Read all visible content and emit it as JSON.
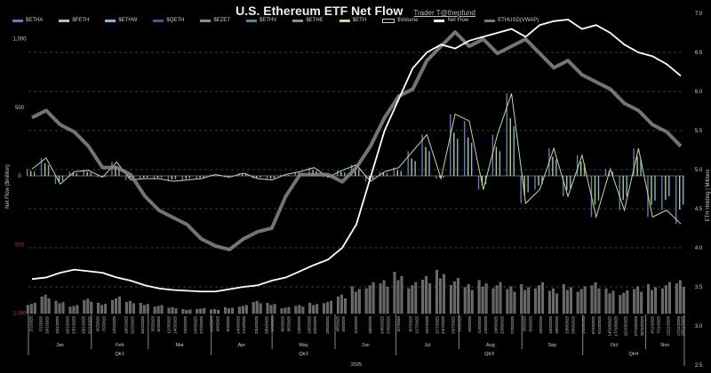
{
  "chart_data": {
    "type": "bar+line",
    "title": "U.S. Ethereum ETF Net Flow",
    "credit": "Trader T@thepfund",
    "legend": [
      {
        "name": "$ETHA",
        "color": "#5b7fc0"
      },
      {
        "name": "$FETH",
        "color": "#b5cf7a"
      },
      {
        "name": "$ETHW",
        "color": "#79b8d8"
      },
      {
        "name": "$QETH",
        "color": "#3f5a95"
      },
      {
        "name": "$EZET",
        "color": "#8a9a55"
      },
      {
        "name": "$ETHV",
        "color": "#4a8aa0"
      },
      {
        "name": "$ETHE",
        "color": "#8c8c8c"
      },
      {
        "name": "$ETH",
        "color": "#c8dd8c"
      },
      {
        "name": "$Volume",
        "color": "#000000"
      },
      {
        "name": "Net Flow",
        "color": "#ffffff"
      },
      {
        "name": "ETHUSD(VWAP)",
        "color": "#777777"
      }
    ],
    "legend_position": "top",
    "ylabel_left": "Net Flow ($million)",
    "ylabel_right": "ETH Holding | Millions",
    "left_ticks": [
      {
        "v": 1000,
        "label": "1,000",
        "color": "#cccccc"
      },
      {
        "v": 500,
        "label": "500",
        "color": "#cccccc"
      },
      {
        "v": 0,
        "label": "0",
        "color": "#cccccc"
      },
      {
        "v": -500,
        "label": "500",
        "color": "#c0392b"
      },
      {
        "v": -1000,
        "label": "1,000",
        "color": "#c0392b"
      }
    ],
    "ylim_left": [
      -1000,
      1000
    ],
    "right_ticks": [
      "7.0",
      "6.5",
      "6.0",
      "5.5",
      "5.0",
      "4.5",
      "4.0",
      "3.5",
      "3.0",
      "2.5"
    ],
    "ylim_right": [
      2.5,
      7.0
    ],
    "grid": "dashed horizontal",
    "year_label": "2025",
    "quarters": [
      "Qtr1",
      "Qtr2",
      "Qtr3",
      "Qtr4"
    ],
    "months": [
      "Jan",
      "Feb",
      "Mar",
      "Apr",
      "May",
      "Jun",
      "Jul",
      "Aug",
      "Sep",
      "Oct",
      "Nov"
    ],
    "date_labels": [
      "2/1/2025",
      "7/1/2025",
      "10/1/2025",
      "15/1/2025",
      "20/1/2025",
      "23/1/2025",
      "28/1/2025",
      "31/1/2025",
      "4/2/2025",
      "7/2/2025",
      "12/2/2025",
      "18/2/2025",
      "21/2/2025",
      "26/2/2025",
      "3/3/2025",
      "6/3/2025",
      "11/3/2025",
      "14/3/2025",
      "19/3/2025",
      "24/3/2025",
      "27/3/2025",
      "1/4/2025",
      "4/4/2025",
      "9/4/2025",
      "14/4/2025",
      "17/4/2025",
      "23/4/2025",
      "28/4/2025",
      "1/5/2025",
      "6/5/2025",
      "9/5/2025",
      "14/5/2025",
      "19/5/2025",
      "22/5/2025",
      "28/5/2025",
      "2/6/2025",
      "5/6/2025",
      "11/6/2025",
      "18/6/2025",
      "24/6/2025",
      "27/6/2025",
      "2/7/2025",
      "8/7/2025",
      "11/7/2025",
      "16/7/2025",
      "21/7/2025",
      "24/7/2025",
      "29/7/2025",
      "1/8/2025",
      "6/8/2025",
      "11/8/2025",
      "14/8/2025",
      "19/8/2025",
      "22/8/2025",
      "27/8/2025",
      "2/9/2025",
      "5/9/2025",
      "10/9/2025",
      "15/9/2025",
      "18/9/2025",
      "23/9/2025",
      "26/9/2025",
      "1/10/2025",
      "6/10/2025",
      "9/10/2025",
      "14/10/2025",
      "17/10/2025",
      "22/10/2025",
      "27/10/2025",
      "30/10/2025",
      "4/11/2025",
      "7/11/2025",
      "12/11/2025",
      "17/11/2025",
      "19/11/2025"
    ],
    "week_net_flow": [
      50,
      130,
      -60,
      30,
      40,
      -10,
      100,
      -30,
      -20,
      -20,
      -40,
      -30,
      -20,
      10,
      -10,
      20,
      -20,
      -30,
      10,
      30,
      60,
      -10,
      40,
      80,
      -40,
      30,
      60,
      180,
      300,
      -20,
      450,
      400,
      -100,
      300,
      600,
      -200,
      -100,
      200,
      -150,
      150,
      -300,
      50,
      -250,
      200,
      -300,
      -250,
      -350
    ],
    "week_eth_holdings_millions": [
      3.6,
      3.62,
      3.68,
      3.72,
      3.7,
      3.68,
      3.62,
      3.58,
      3.52,
      3.48,
      3.46,
      3.45,
      3.44,
      3.44,
      3.47,
      3.5,
      3.52,
      3.58,
      3.62,
      3.7,
      3.78,
      3.85,
      4.0,
      4.3,
      4.9,
      5.5,
      5.9,
      6.3,
      6.5,
      6.6,
      6.55,
      6.65,
      6.7,
      6.75,
      6.8,
      6.7,
      6.85,
      6.9,
      6.92,
      6.8,
      6.85,
      6.75,
      6.6,
      6.5,
      6.45,
      6.35,
      6.2
    ],
    "week_ethusd_vwap": [
      3400,
      3500,
      3300,
      3200,
      3000,
      2700,
      2700,
      2600,
      2300,
      2100,
      2000,
      1900,
      1700,
      1600,
      1550,
      1700,
      1800,
      1850,
      2300,
      2600,
      2600,
      2600,
      2500,
      2700,
      3000,
      3400,
      3700,
      3800,
      4200,
      4400,
      4600,
      4400,
      4500,
      4300,
      4400,
      4500,
      4300,
      4100,
      4200,
      4000,
      3900,
      3800,
      3600,
      3500,
      3300,
      3200,
      3000
    ],
    "week_volume_millions": [
      500,
      900,
      600,
      400,
      700,
      500,
      800,
      600,
      500,
      400,
      300,
      200,
      250,
      200,
      300,
      400,
      600,
      500,
      300,
      400,
      500,
      600,
      900,
      1300,
      1500,
      1600,
      2000,
      1500,
      1800,
      2100,
      1700,
      1400,
      1600,
      1500,
      1300,
      1400,
      1500,
      1200,
      1400,
      1300,
      1500,
      1200,
      1100,
      1300,
      1400,
      1500,
      1600
    ],
    "volume_max_millions": 3000,
    "price_range_hidden": [
      1000,
      5000
    ]
  }
}
